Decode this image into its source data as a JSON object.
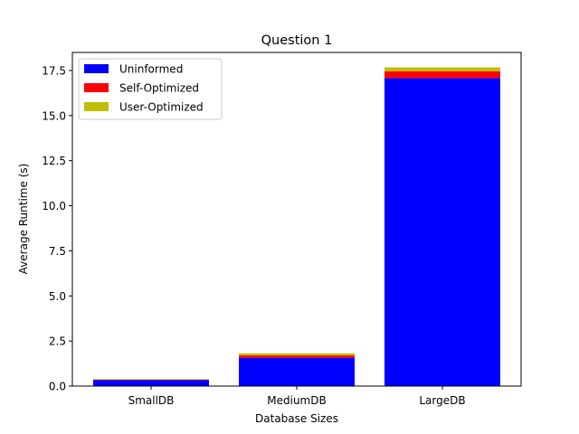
{
  "chart_data": {
    "type": "bar",
    "stacked": true,
    "title": "Question 1",
    "xlabel": "Database Sizes",
    "ylabel": "Average Runtime (s)",
    "categories": [
      "SmallDB",
      "MediumDB",
      "LargeDB"
    ],
    "ylim": [
      0,
      18.5
    ],
    "yticks": [
      "0.0",
      "2.5",
      "5.0",
      "7.5",
      "10.0",
      "12.5",
      "15.0",
      "17.5"
    ],
    "series": [
      {
        "name": "Uninformed",
        "color": "#0000ff",
        "values": [
          0.33,
          1.57,
          17.08
        ]
      },
      {
        "name": "Self-Optimized",
        "color": "#ff0000",
        "values": [
          0.03,
          0.13,
          0.38
        ]
      },
      {
        "name": "User-Optimized",
        "color": "#bfbf00",
        "values": [
          0.03,
          0.12,
          0.21
        ]
      }
    ],
    "legend_position": "top-left",
    "grid": false
  }
}
